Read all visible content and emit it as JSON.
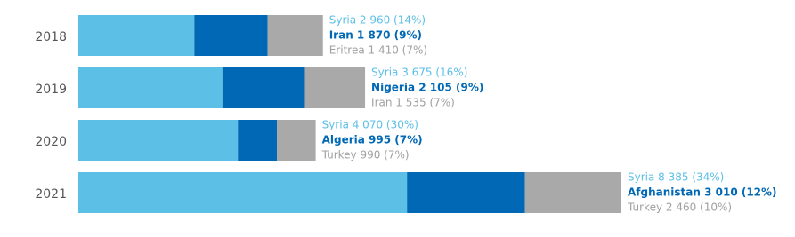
{
  "chart_data": {
    "type": "stacked-bar-horizontal",
    "categories": [
      "2018",
      "2019",
      "2020",
      "2021"
    ],
    "series": [
      {
        "color": "#5bbfe6",
        "values": [
          2960,
          3675,
          4070,
          8385
        ],
        "value_labels": [
          "Syria 2 960 (14%)",
          "Syria 3 675 (16%)",
          "Syria 4 070 (30%)",
          "Syria 8 385 (34%)"
        ]
      },
      {
        "color": "#0068b4",
        "values": [
          1870,
          2105,
          995,
          3010
        ],
        "value_labels": [
          "Iran 1 870 (9%)",
          "Nigeria 2 105 (9%)",
          "Algeria 995 (7%)",
          "Afghanistan 3 010 (12%)"
        ]
      },
      {
        "color": "#a9a9a9",
        "values": [
          1410,
          1535,
          990,
          2460
        ],
        "value_labels": [
          "Eritrea 1 410 (7%)",
          "Iran 1 535 (7%)",
          "Turkey 990 (7%)",
          "Turkey 2 460 (10%)"
        ]
      }
    ]
  }
}
